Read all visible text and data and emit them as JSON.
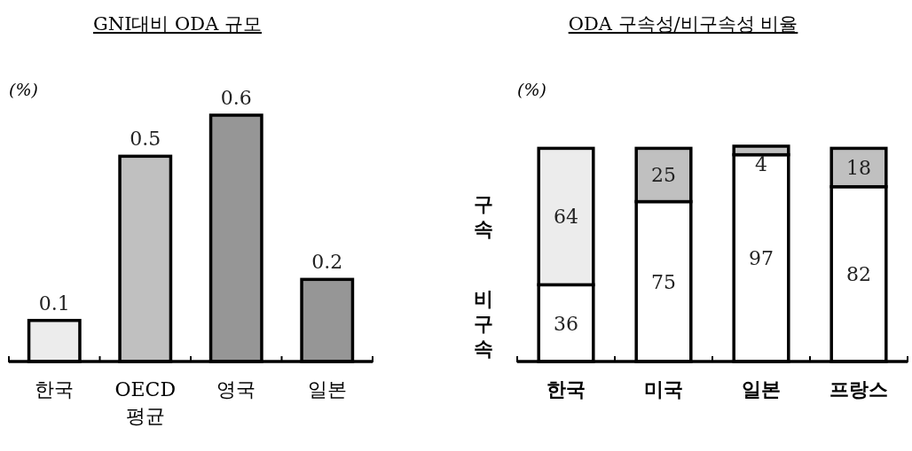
{
  "chart_data": [
    {
      "type": "bar",
      "title": "GNI대비 ODA 규모",
      "ylabel": "(%)",
      "categories": [
        "한국",
        "OECD\n평균",
        "영국",
        "일본"
      ],
      "values": [
        0.1,
        0.5,
        0.6,
        0.2
      ],
      "colors": [
        "#ececec",
        "#c0c0c0",
        "#969696",
        "#969696"
      ],
      "data_labels": true
    },
    {
      "type": "bar",
      "title": "ODA 구속성/비구속성 비율",
      "ylabel": "(%)",
      "categories": [
        "한국",
        "미국",
        "일본",
        "프랑스"
      ],
      "stacked": true,
      "data_labels": true,
      "series": [
        {
          "name": "비구속",
          "color": "#ffffff",
          "values": [
            36,
            75,
            97,
            82
          ]
        },
        {
          "name": "구속",
          "colors": [
            "#ececec",
            "#c0c0c0",
            "#c0c0c0",
            "#c0c0c0"
          ],
          "values": [
            64,
            25,
            4,
            18
          ]
        }
      ]
    }
  ]
}
